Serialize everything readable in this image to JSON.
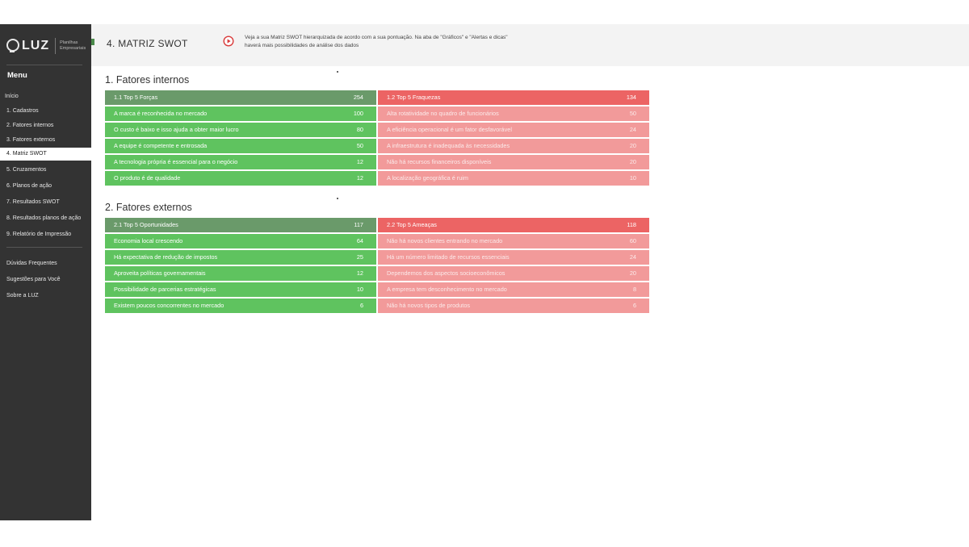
{
  "sidebar": {
    "logo_text": "LUZ",
    "logo_tag": "Planilhas Empresariais",
    "menu_title": "Menu",
    "items": [
      {
        "label": "Início",
        "active": false
      },
      {
        "label": "1. Cadastros",
        "active": false
      },
      {
        "label": "2. Fatores internos",
        "active": false
      },
      {
        "label": "3. Fatores externos",
        "active": false
      },
      {
        "label": "4. Matriz SWOT",
        "active": true
      },
      {
        "label": "5. Cruzamentos",
        "active": false
      },
      {
        "label": "6. Planos de ação",
        "active": false
      },
      {
        "label": "7. Resultados SWOT",
        "active": false
      },
      {
        "label": "8. Resultados planos de ação",
        "active": false
      },
      {
        "label": "9. Relatório de Impressão",
        "active": false
      }
    ],
    "extra_items": [
      {
        "label": "Dúvidas Frequentes"
      },
      {
        "label": "Sugestões para Você"
      },
      {
        "label": "Sobre a LUZ"
      }
    ]
  },
  "header": {
    "title": "4. MATRIZ SWOT",
    "info_line1": "Veja a sua Matriz SWOT hierarquizada de acordo com a sua pontuação. Na aba de \"Gráficos\" e \"Alertas e dicas\"",
    "info_line2": "haverá mais possibilidades de análise dos dados"
  },
  "sections": {
    "internal_title": "1. Fatores internos",
    "external_title": "2. Fatores externos"
  },
  "tables": {
    "forcas": {
      "header": {
        "label": "1.1 Top 5 Forças",
        "value": "254"
      },
      "rows": [
        {
          "label": "A marca é reconhecida no mercado",
          "value": "100"
        },
        {
          "label": "O custo é baixo e isso ajuda a obter maior lucro",
          "value": "80"
        },
        {
          "label": "A equipe é competente e entrosada",
          "value": "50"
        },
        {
          "label": "A tecnologia própria é essencial para o negócio",
          "value": "12"
        },
        {
          "label": "O produto é de qualidade",
          "value": "12"
        }
      ]
    },
    "fraquezas": {
      "header": {
        "label": "1.2 Top 5 Fraquezas",
        "value": "134"
      },
      "rows": [
        {
          "label": "Alta rotatividade no quadro de funcionários",
          "value": "50"
        },
        {
          "label": "A eficiência operacional é um fator desfavorável",
          "value": "24"
        },
        {
          "label": "A infraestrutura é inadequada às necessidades",
          "value": "20"
        },
        {
          "label": "Não há recursos financeiros disponíveis",
          "value": "20"
        },
        {
          "label": "A localização geográfica é ruim",
          "value": "10"
        }
      ]
    },
    "oportunidades": {
      "header": {
        "label": "2.1 Top 5 Oportunidades",
        "value": "117"
      },
      "rows": [
        {
          "label": "Economia local crescendo",
          "value": "64"
        },
        {
          "label": "Há expectativa de redução de impostos",
          "value": "25"
        },
        {
          "label": "Aproveita políticas governamentais",
          "value": "12"
        },
        {
          "label": "Possibilidade de parcerias estratégicas",
          "value": "10"
        },
        {
          "label": "Existem poucos concorrentes no mercado",
          "value": "6"
        }
      ]
    },
    "ameacas": {
      "header": {
        "label": "2.2 Top 5 Ameaças",
        "value": "118"
      },
      "rows": [
        {
          "label": "Não há novos clientes entrando no mercado",
          "value": "60"
        },
        {
          "label": "Há um número limitado de recursos essenciais",
          "value": "24"
        },
        {
          "label": "Dependemos dos aspectos socioeconômicos",
          "value": "20"
        },
        {
          "label": "A empresa tem desconhecimento no mercado",
          "value": "8"
        },
        {
          "label": "Não há novos tipos de produtos",
          "value": "6"
        }
      ]
    }
  },
  "colors": {
    "sidebar_bg": "#333333",
    "green_header": "#6a9a6a",
    "green_row": "#5fc35f",
    "red_header": "#ec6464",
    "red_row": "#f29a9a",
    "play_icon": "#d93b3b"
  },
  "icons": {
    "header_info": "play-circle-icon"
  }
}
